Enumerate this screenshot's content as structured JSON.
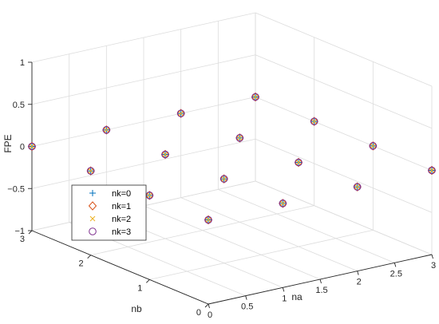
{
  "chart_data": {
    "type": "scatter",
    "projection": "3d",
    "title": "",
    "xlabel": "na",
    "ylabel": "nb",
    "zlabel": "FPE",
    "xlim": [
      0,
      3
    ],
    "ylim": [
      0,
      3
    ],
    "zlim": [
      -1,
      1
    ],
    "xticks": [
      "0",
      "0.5",
      "1",
      "1.5",
      "2",
      "2.5",
      "3"
    ],
    "yticks": [
      "0",
      "1",
      "2",
      "3"
    ],
    "zticks": [
      "-1",
      "-0.5",
      "0",
      "0.5",
      "1"
    ],
    "grid": true,
    "legend_position": "left",
    "series": [
      {
        "name": "nk=0",
        "marker": "plus",
        "color": "#0072BD"
      },
      {
        "name": "nk=1",
        "marker": "diamond",
        "color": "#D95319"
      },
      {
        "name": "nk=2",
        "marker": "x",
        "color": "#EDB120"
      },
      {
        "name": "nk=3",
        "marker": "circle",
        "color": "#7E2F8E"
      }
    ],
    "points": [
      {
        "na": 0,
        "nb": 0,
        "fpe": 0
      },
      {
        "na": 1,
        "nb": 0,
        "fpe": 0
      },
      {
        "na": 2,
        "nb": 0,
        "fpe": 0
      },
      {
        "na": 3,
        "nb": 0,
        "fpe": 0
      },
      {
        "na": 0,
        "nb": 1,
        "fpe": 0
      },
      {
        "na": 1,
        "nb": 1,
        "fpe": 0
      },
      {
        "na": 2,
        "nb": 1,
        "fpe": 0
      },
      {
        "na": 3,
        "nb": 1,
        "fpe": 0
      },
      {
        "na": 0,
        "nb": 2,
        "fpe": 0
      },
      {
        "na": 1,
        "nb": 2,
        "fpe": 0
      },
      {
        "na": 2,
        "nb": 2,
        "fpe": 0
      },
      {
        "na": 3,
        "nb": 2,
        "fpe": 0
      },
      {
        "na": 0,
        "nb": 3,
        "fpe": 0
      },
      {
        "na": 1,
        "nb": 3,
        "fpe": 0
      },
      {
        "na": 2,
        "nb": 3,
        "fpe": 0
      },
      {
        "na": 3,
        "nb": 3,
        "fpe": 0
      }
    ]
  }
}
